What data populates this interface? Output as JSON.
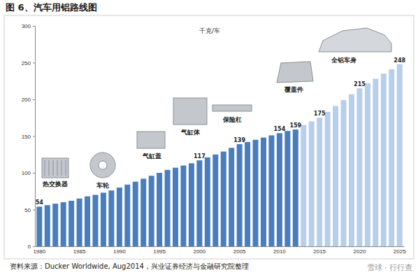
{
  "chart_data": {
    "type": "bar",
    "title": "图 6、汽车用铝路线图",
    "ylabel": "千克/车",
    "categories": [
      "1980",
      null,
      null,
      null,
      null,
      "1985",
      null,
      null,
      null,
      null,
      "1990",
      null,
      null,
      null,
      null,
      "1995",
      null,
      null,
      null,
      null,
      "2000",
      null,
      null,
      null,
      null,
      "2005",
      null,
      null,
      null,
      null,
      "2010",
      null,
      null,
      null,
      null,
      "2015",
      null,
      null,
      null,
      null,
      "2020",
      null,
      null,
      null,
      null,
      "2025"
    ],
    "values": [
      54,
      56,
      58,
      60,
      62,
      65,
      68,
      70,
      73,
      76,
      80,
      84,
      88,
      92,
      96,
      100,
      104,
      107,
      110,
      113,
      117,
      121,
      125,
      129,
      134,
      139,
      142,
      145,
      148,
      151,
      154,
      157,
      159,
      165,
      170,
      175,
      183,
      191,
      199,
      207,
      215,
      222,
      228,
      235,
      241,
      248
    ],
    "value_labels": [
      "54",
      null,
      null,
      null,
      null,
      null,
      null,
      null,
      null,
      null,
      null,
      null,
      null,
      null,
      null,
      null,
      null,
      null,
      null,
      null,
      "117",
      null,
      null,
      null,
      null,
      "139",
      null,
      null,
      null,
      null,
      "154",
      null,
      "159",
      null,
      null,
      "175",
      null,
      null,
      null,
      null,
      "215",
      null,
      null,
      null,
      null,
      "248"
    ],
    "data_labels": true,
    "colors": [
      "#4a7ebb",
      "#4a7ebb",
      "#4a7ebb",
      "#4a7ebb",
      "#4a7ebb",
      "#4a7ebb",
      "#4a7ebb",
      "#4a7ebb",
      "#4a7ebb",
      "#4a7ebb",
      "#4a7ebb",
      "#4a7ebb",
      "#4a7ebb",
      "#4a7ebb",
      "#4a7ebb",
      "#4a7ebb",
      "#4a7ebb",
      "#4a7ebb",
      "#4a7ebb",
      "#4a7ebb",
      "#4a7ebb",
      "#4a7ebb",
      "#4a7ebb",
      "#4a7ebb",
      "#4a7ebb",
      "#4a7ebb",
      "#4a7ebb",
      "#4a7ebb",
      "#4a7ebb",
      "#4a7ebb",
      "#4a7ebb",
      "#4a7ebb",
      "#4a7ebb",
      "#b8cfe9",
      "#b8cfe9",
      "#b8cfe9",
      "#b8cfe9",
      "#b8cfe9",
      "#b8cfe9",
      "#b8cfe9",
      "#b8cfe9",
      "#b8cfe9",
      "#b8cfe9",
      "#b8cfe9",
      "#b8cfe9",
      "#b8cfe9"
    ],
    "ylim": [
      0,
      300
    ],
    "yticks": [
      0,
      50,
      100,
      150,
      200,
      250,
      300
    ],
    "grid": false,
    "annotations": [
      "热交换器",
      "车轮",
      "气缸盖",
      "气缸体",
      "保险杠",
      "覆盖件",
      "全铝车身"
    ],
    "source": "资料来源：Ducker Worldwide, Aug2014，兴业证券经济与金融研究院整理",
    "watermark": "雪球 · 行行查"
  }
}
